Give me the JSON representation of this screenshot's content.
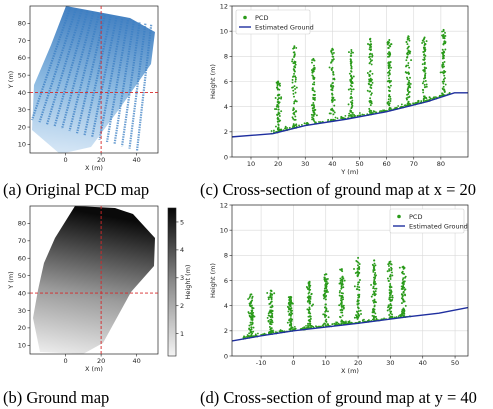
{
  "captions": {
    "a": "(a) Original PCD map",
    "b": "(b) Ground map",
    "c": "(c) Cross-section of ground map at x = 20",
    "d": "(d) Cross-section of ground map at y = 40"
  },
  "colors": {
    "pcd_green": "#2a9a1a",
    "ground_blue": "#1f2f9f",
    "pcd_map_blue": "#3b7fc4",
    "crosshair_red": "#d62728"
  },
  "chart_data": [
    {
      "id": "a",
      "type": "scatter",
      "xlabel": "X (m)",
      "ylabel": "Y (m)",
      "xlim": [
        -20,
        52
      ],
      "ylim": [
        5,
        90
      ],
      "xticks": [
        0,
        20,
        40
      ],
      "yticks": [
        10,
        20,
        30,
        40,
        50,
        60,
        70,
        80
      ],
      "grid": false,
      "crosshair": {
        "x": 20,
        "y": 40
      }
    },
    {
      "id": "b",
      "type": "heatmap",
      "xlabel": "X (m)",
      "ylabel": "Y (m)",
      "xlim": [
        -20,
        52
      ],
      "ylim": [
        5,
        90
      ],
      "xticks": [
        0,
        20,
        40
      ],
      "yticks": [
        10,
        20,
        30,
        40,
        50,
        60,
        70,
        80
      ],
      "colorbar": {
        "label": "Height (m)",
        "ticks": [
          1,
          2,
          3,
          4,
          5
        ],
        "range": [
          0.2,
          5.5
        ]
      },
      "crosshair": {
        "x": 20,
        "y": 40
      }
    },
    {
      "id": "c",
      "type": "scatter",
      "xlabel": "Y (m)",
      "ylabel": "Height (m)",
      "xlim": [
        3,
        90
      ],
      "ylim": [
        0,
        12
      ],
      "xticks": [
        10,
        20,
        30,
        40,
        50,
        60,
        70,
        80
      ],
      "yticks": [
        0,
        2,
        4,
        6,
        8,
        10,
        12
      ],
      "grid": true,
      "legend": "top-left",
      "series": [
        {
          "name": "PCD",
          "kind": "points",
          "rows": [
            {
              "x": 20,
              "top": 6.0
            },
            {
              "x": 26,
              "top": 8.8
            },
            {
              "x": 33,
              "top": 7.8
            },
            {
              "x": 40,
              "top": 8.6
            },
            {
              "x": 47,
              "top": 8.5
            },
            {
              "x": 54,
              "top": 9.4
            },
            {
              "x": 61,
              "top": 9.3
            },
            {
              "x": 68,
              "top": 9.6
            },
            {
              "x": 74,
              "top": 9.5
            },
            {
              "x": 81,
              "top": 10.1
            }
          ]
        },
        {
          "name": "Estimated Ground",
          "kind": "line",
          "x": [
            3,
            18,
            30,
            45,
            60,
            75,
            85,
            90
          ],
          "y": [
            1.6,
            1.85,
            2.5,
            3.0,
            3.6,
            4.4,
            5.1,
            5.1
          ]
        }
      ]
    },
    {
      "id": "d",
      "type": "scatter",
      "xlabel": "X (m)",
      "ylabel": "Height (m)",
      "xlim": [
        -19,
        54
      ],
      "ylim": [
        0,
        12
      ],
      "xticks": [
        -10,
        0,
        10,
        20,
        30,
        40,
        50
      ],
      "yticks": [
        0,
        2,
        4,
        6,
        8,
        10,
        12
      ],
      "grid": true,
      "legend": "top-right",
      "series": [
        {
          "name": "PCD",
          "kind": "points",
          "rows": [
            {
              "x": -13,
              "top": 4.9
            },
            {
              "x": -7,
              "top": 5.2
            },
            {
              "x": -1,
              "top": 4.7
            },
            {
              "x": 5,
              "top": 5.9
            },
            {
              "x": 10,
              "top": 6.5
            },
            {
              "x": 15,
              "top": 6.9
            },
            {
              "x": 20,
              "top": 7.8
            },
            {
              "x": 25,
              "top": 7.6
            },
            {
              "x": 30,
              "top": 7.5
            },
            {
              "x": 34,
              "top": 7.1
            }
          ]
        },
        {
          "name": "Estimated Ground",
          "kind": "line",
          "x": [
            -19,
            -10,
            0,
            10,
            20,
            35,
            45,
            54
          ],
          "y": [
            1.2,
            1.6,
            2.0,
            2.3,
            2.6,
            3.1,
            3.4,
            3.85
          ]
        }
      ]
    }
  ]
}
